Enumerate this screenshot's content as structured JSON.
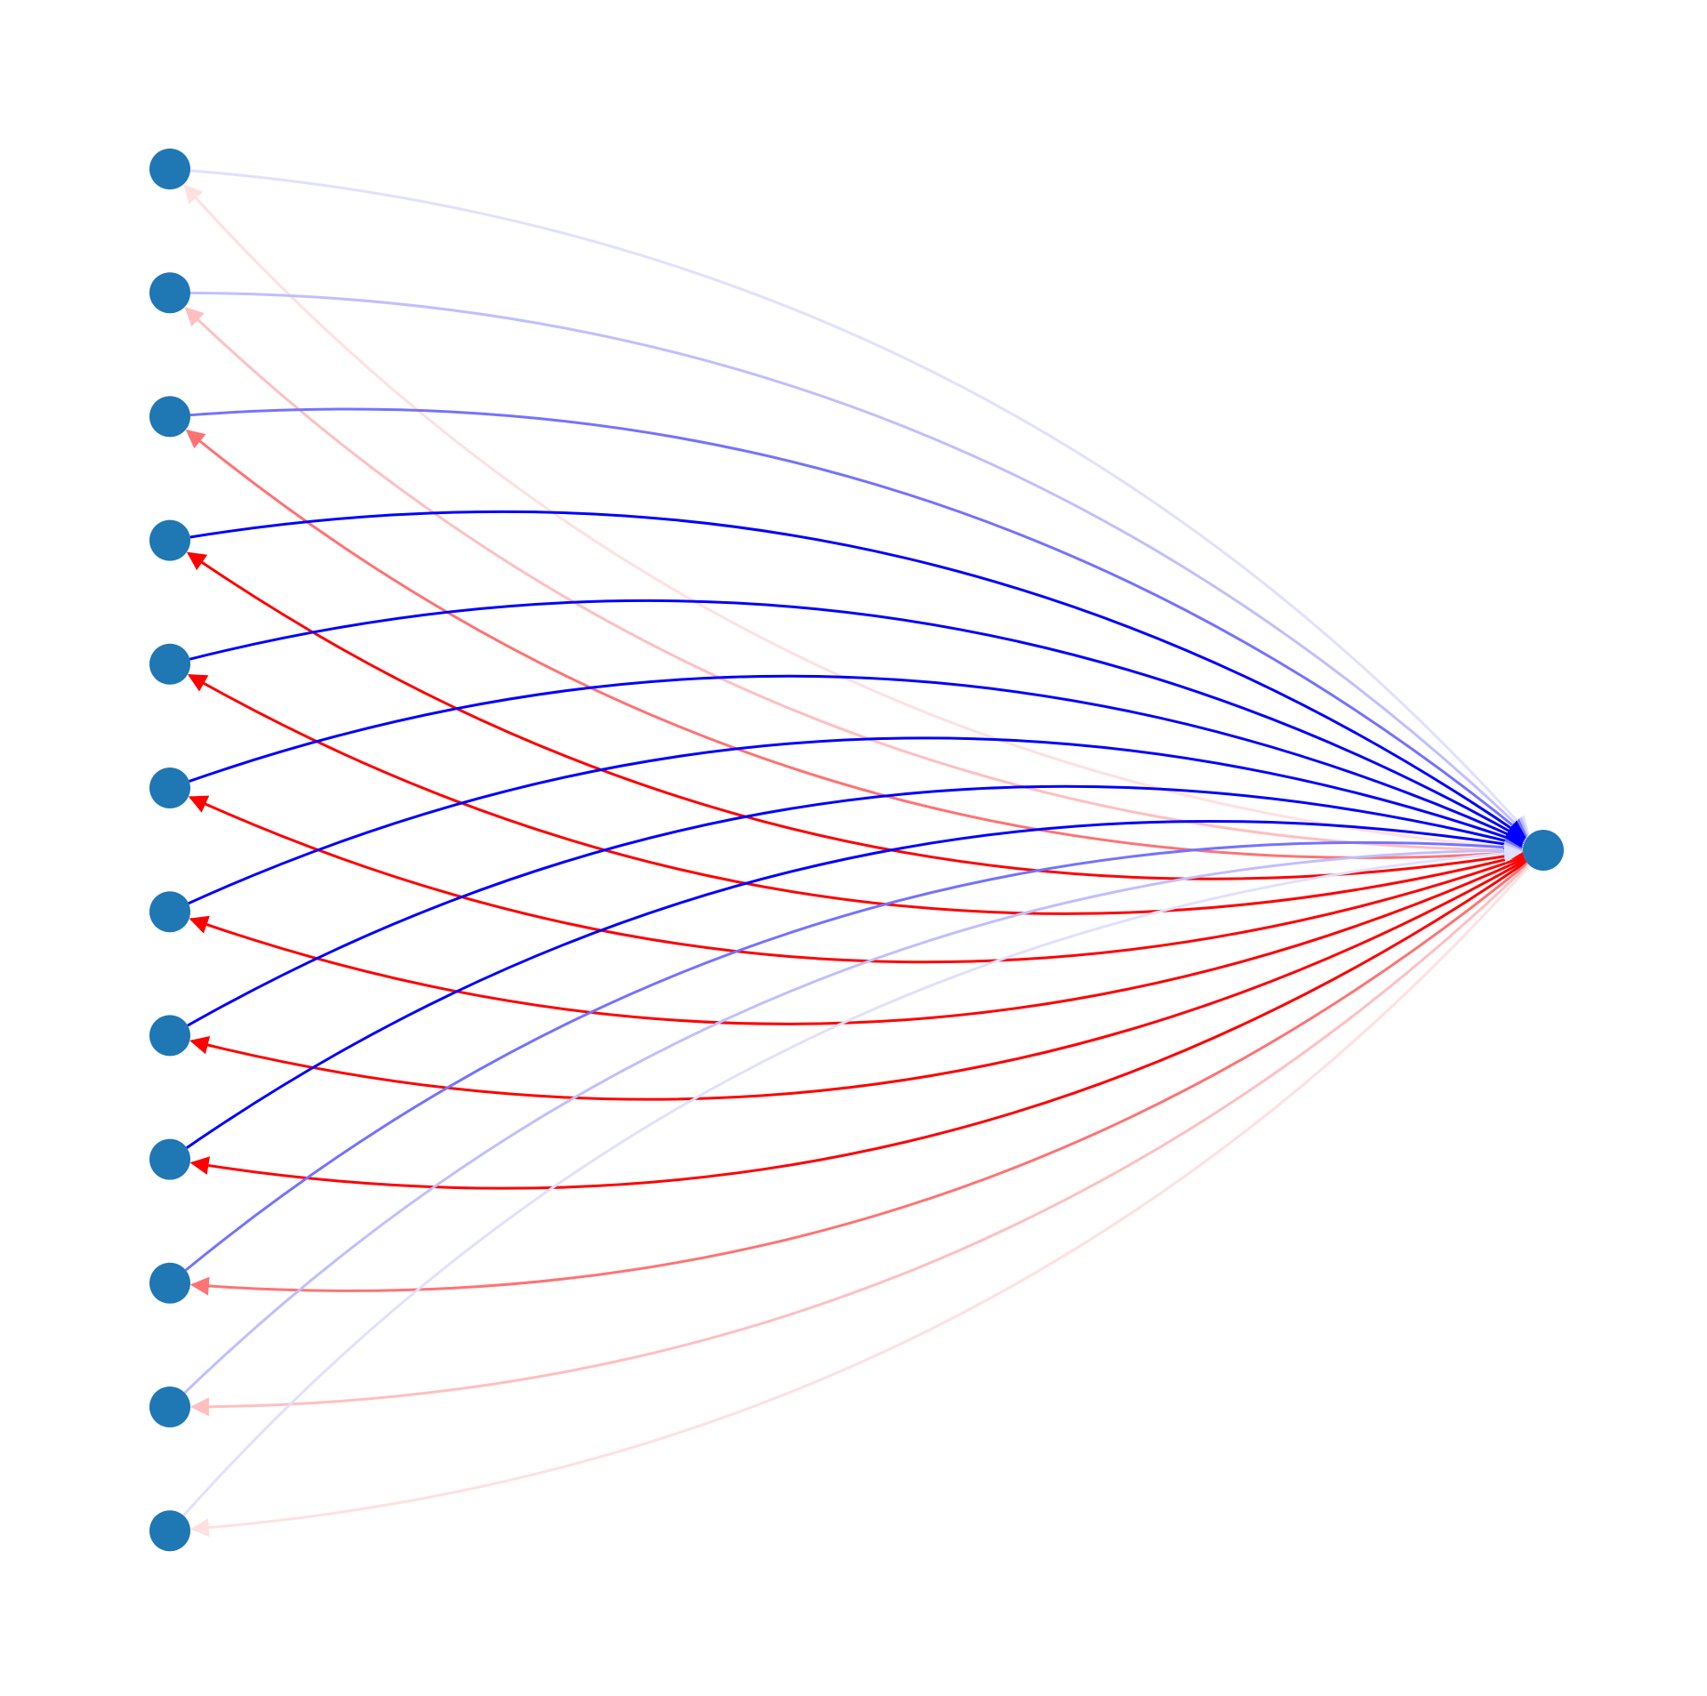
{
  "diagram": {
    "type": "directed-graph",
    "node_color": "#1f77b4",
    "incoming_edge_color": "#0000ff",
    "outgoing_edge_color": "#ff0000",
    "left_node_count": 12,
    "edge_opacity_levels": [
      0.12,
      0.25,
      0.55,
      1.0,
      1.0,
      1.0,
      1.0,
      1.0,
      1.0,
      0.55,
      0.25,
      0.12
    ],
    "nodes": [
      {
        "id": "L1"
      },
      {
        "id": "L2"
      },
      {
        "id": "L3"
      },
      {
        "id": "L4"
      },
      {
        "id": "L5"
      },
      {
        "id": "L6"
      },
      {
        "id": "L7"
      },
      {
        "id": "L8"
      },
      {
        "id": "L9"
      },
      {
        "id": "L10"
      },
      {
        "id": "L11"
      },
      {
        "id": "L12"
      },
      {
        "id": "R"
      }
    ]
  }
}
